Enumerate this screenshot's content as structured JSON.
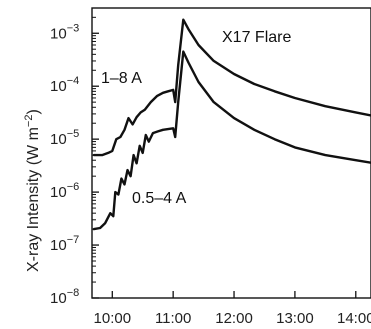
{
  "chart_data": {
    "type": "line",
    "title": "",
    "xlabel": "",
    "ylabel": "X-ray Intensity (W m",
    "ylabel_superscript": "−2",
    "ylabel_close": ")",
    "yscale": "log",
    "xlim": [
      "09:40",
      "14:15"
    ],
    "ylim": [
      1e-08,
      0.003
    ],
    "grid": false,
    "x_ticks": [
      "10:00",
      "11:00",
      "12:00",
      "13:00",
      "14:00"
    ],
    "y_ticks": [
      {
        "base": "10",
        "exp": "−3"
      },
      {
        "base": "10",
        "exp": "−4"
      },
      {
        "base": "10",
        "exp": "−5"
      },
      {
        "base": "10",
        "exp": "−6"
      },
      {
        "base": "10",
        "exp": "−7"
      },
      {
        "base": "10",
        "exp": "−8"
      }
    ],
    "annotations": [
      "X17 Flare",
      "1–8 A",
      "0.5–4 A"
    ],
    "series": [
      {
        "name": "1–8 A",
        "color": "#111111",
        "x": [
          "09:42",
          "09:50",
          "09:56",
          "10:00",
          "10:04",
          "10:08",
          "10:12",
          "10:16",
          "10:20",
          "10:24",
          "10:28",
          "10:32",
          "10:38",
          "10:44",
          "10:50",
          "10:55",
          "11:00",
          "11:02",
          "11:05",
          "11:10",
          "11:15",
          "11:25",
          "11:40",
          "12:00",
          "12:20",
          "12:40",
          "13:00",
          "13:30",
          "14:00",
          "14:15"
        ],
        "y": [
          5e-06,
          5e-06,
          5.5e-06,
          6e-06,
          1e-05,
          1.1e-05,
          1.5e-05,
          2.5e-05,
          1.9e-05,
          2.6e-05,
          3.2e-05,
          3.6e-05,
          5e-05,
          6.5e-05,
          7.5e-05,
          8e-05,
          8.5e-05,
          5e-05,
          0.00025,
          0.0018,
          0.0012,
          0.0006,
          0.0003,
          0.00017,
          0.00011,
          8e-05,
          6e-05,
          4.2e-05,
          3.2e-05,
          2.8e-05
        ]
      },
      {
        "name": "0.5–4 A",
        "color": "#111111",
        "x": [
          "09:42",
          "09:48",
          "09:53",
          "09:58",
          "10:01",
          "10:03",
          "10:06",
          "10:09",
          "10:12",
          "10:15",
          "10:18",
          "10:21",
          "10:24",
          "10:27",
          "10:30",
          "10:33",
          "10:36",
          "10:40",
          "10:45",
          "10:50",
          "10:55",
          "11:00",
          "11:02",
          "11:05",
          "11:10",
          "11:15",
          "11:25",
          "11:40",
          "12:00",
          "12:20",
          "12:40",
          "13:00",
          "13:30",
          "14:00",
          "14:15"
        ],
        "y": [
          2e-07,
          2.1e-07,
          2.6e-07,
          4e-07,
          3.5e-07,
          1e-06,
          9e-07,
          1.8e-06,
          1.4e-06,
          2.6e-06,
          2e-06,
          5e-06,
          3.5e-06,
          7.5e-06,
          5.5e-06,
          1.2e-05,
          9e-06,
          1.3e-05,
          1.4e-05,
          1.5e-05,
          1.55e-05,
          1.6e-05,
          1.1e-05,
          5e-05,
          0.00045,
          0.00028,
          0.00012,
          5e-05,
          2.5e-05,
          1.5e-05,
          1e-05,
          7e-06,
          5e-06,
          4e-06,
          3.6e-06
        ]
      }
    ]
  }
}
